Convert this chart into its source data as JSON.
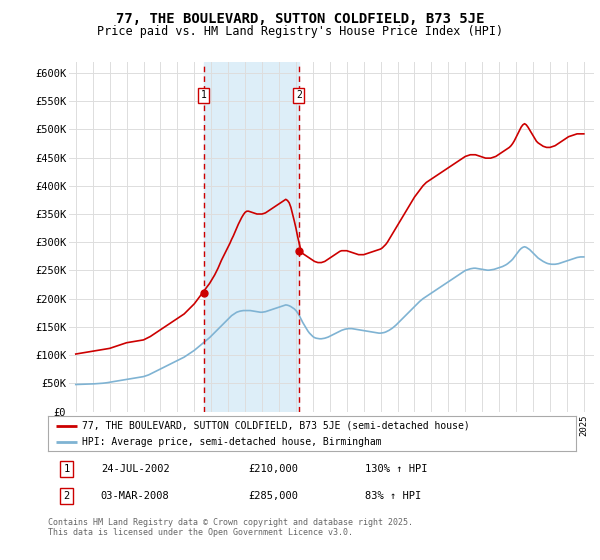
{
  "title": "77, THE BOULEVARD, SUTTON COLDFIELD, B73 5JE",
  "subtitle": "Price paid vs. HM Land Registry's House Price Index (HPI)",
  "ylim": [
    0,
    620000
  ],
  "yticks": [
    0,
    50000,
    100000,
    150000,
    200000,
    250000,
    300000,
    350000,
    400000,
    450000,
    500000,
    550000,
    600000
  ],
  "ytick_labels": [
    "£0",
    "£50K",
    "£100K",
    "£150K",
    "£200K",
    "£250K",
    "£300K",
    "£350K",
    "£400K",
    "£450K",
    "£500K",
    "£550K",
    "£600K"
  ],
  "xlim_start": 1994.6,
  "xlim_end": 2025.6,
  "transaction1_x": 2002.56,
  "transaction1_y": 210000,
  "transaction1_label": "1",
  "transaction1_date": "24-JUL-2002",
  "transaction1_price": "£210,000",
  "transaction1_hpi": "130% ↑ HPI",
  "transaction2_x": 2008.17,
  "transaction2_y": 285000,
  "transaction2_label": "2",
  "transaction2_date": "03-MAR-2008",
  "transaction2_price": "£285,000",
  "transaction2_hpi": "83% ↑ HPI",
  "shade_color": "#ddeef8",
  "red_line_color": "#cc0000",
  "blue_line_color": "#7fb3d3",
  "grid_color": "#dddddd",
  "background_color": "#ffffff",
  "legend_label_red": "77, THE BOULEVARD, SUTTON COLDFIELD, B73 5JE (semi-detached house)",
  "legend_label_blue": "HPI: Average price, semi-detached house, Birmingham",
  "footer": "Contains HM Land Registry data © Crown copyright and database right 2025.\nThis data is licensed under the Open Government Licence v3.0.",
  "hpi_red_years": [
    1995.0,
    1995.1,
    1995.2,
    1995.3,
    1995.4,
    1995.5,
    1995.6,
    1995.7,
    1995.8,
    1995.9,
    1996.0,
    1996.1,
    1996.2,
    1996.3,
    1996.4,
    1996.5,
    1996.6,
    1996.7,
    1996.8,
    1996.9,
    1997.0,
    1997.1,
    1997.2,
    1997.3,
    1997.4,
    1997.5,
    1997.6,
    1997.7,
    1997.8,
    1997.9,
    1998.0,
    1998.1,
    1998.2,
    1998.3,
    1998.4,
    1998.5,
    1998.6,
    1998.7,
    1998.8,
    1998.9,
    1999.0,
    1999.1,
    1999.2,
    1999.3,
    1999.4,
    1999.5,
    1999.6,
    1999.7,
    1999.8,
    1999.9,
    2000.0,
    2000.1,
    2000.2,
    2000.3,
    2000.4,
    2000.5,
    2000.6,
    2000.7,
    2000.8,
    2000.9,
    2001.0,
    2001.1,
    2001.2,
    2001.3,
    2001.4,
    2001.5,
    2001.6,
    2001.7,
    2001.8,
    2001.9,
    2002.0,
    2002.1,
    2002.2,
    2002.3,
    2002.4,
    2002.5,
    2002.6,
    2002.7,
    2002.8,
    2002.9,
    2003.0,
    2003.1,
    2003.2,
    2003.3,
    2003.4,
    2003.5,
    2003.6,
    2003.7,
    2003.8,
    2003.9,
    2004.0,
    2004.1,
    2004.2,
    2004.3,
    2004.4,
    2004.5,
    2004.6,
    2004.7,
    2004.8,
    2004.9,
    2005.0,
    2005.1,
    2005.2,
    2005.3,
    2005.4,
    2005.5,
    2005.6,
    2005.7,
    2005.8,
    2005.9,
    2006.0,
    2006.1,
    2006.2,
    2006.3,
    2006.4,
    2006.5,
    2006.6,
    2006.7,
    2006.8,
    2006.9,
    2007.0,
    2007.1,
    2007.2,
    2007.3,
    2007.4,
    2007.5,
    2007.6,
    2007.7,
    2007.8,
    2007.9,
    2008.0,
    2008.1,
    2008.2,
    2008.3,
    2008.4,
    2008.5,
    2008.6,
    2008.7,
    2008.8,
    2008.9,
    2009.0,
    2009.1,
    2009.2,
    2009.3,
    2009.4,
    2009.5,
    2009.6,
    2009.7,
    2009.8,
    2009.9,
    2010.0,
    2010.1,
    2010.2,
    2010.3,
    2010.4,
    2010.5,
    2010.6,
    2010.7,
    2010.8,
    2010.9,
    2011.0,
    2011.1,
    2011.2,
    2011.3,
    2011.4,
    2011.5,
    2011.6,
    2011.7,
    2011.8,
    2011.9,
    2012.0,
    2012.1,
    2012.2,
    2012.3,
    2012.4,
    2012.5,
    2012.6,
    2012.7,
    2012.8,
    2012.9,
    2013.0,
    2013.1,
    2013.2,
    2013.3,
    2013.4,
    2013.5,
    2013.6,
    2013.7,
    2013.8,
    2013.9,
    2014.0,
    2014.1,
    2014.2,
    2014.3,
    2014.4,
    2014.5,
    2014.6,
    2014.7,
    2014.8,
    2014.9,
    2015.0,
    2015.1,
    2015.2,
    2015.3,
    2015.4,
    2015.5,
    2015.6,
    2015.7,
    2015.8,
    2015.9,
    2016.0,
    2016.1,
    2016.2,
    2016.3,
    2016.4,
    2016.5,
    2016.6,
    2016.7,
    2016.8,
    2016.9,
    2017.0,
    2017.1,
    2017.2,
    2017.3,
    2017.4,
    2017.5,
    2017.6,
    2017.7,
    2017.8,
    2017.9,
    2018.0,
    2018.1,
    2018.2,
    2018.3,
    2018.4,
    2018.5,
    2018.6,
    2018.7,
    2018.8,
    2018.9,
    2019.0,
    2019.1,
    2019.2,
    2019.3,
    2019.4,
    2019.5,
    2019.6,
    2019.7,
    2019.8,
    2019.9,
    2020.0,
    2020.1,
    2020.2,
    2020.3,
    2020.4,
    2020.5,
    2020.6,
    2020.7,
    2020.8,
    2020.9,
    2021.0,
    2021.1,
    2021.2,
    2021.3,
    2021.4,
    2021.5,
    2021.6,
    2021.7,
    2021.8,
    2021.9,
    2022.0,
    2022.1,
    2022.2,
    2022.3,
    2022.4,
    2022.5,
    2022.6,
    2022.7,
    2022.8,
    2022.9,
    2023.0,
    2023.1,
    2023.2,
    2023.3,
    2023.4,
    2023.5,
    2023.6,
    2023.7,
    2023.8,
    2023.9,
    2024.0,
    2024.1,
    2024.2,
    2024.3,
    2024.4,
    2024.5,
    2024.6,
    2024.7,
    2024.8,
    2024.9,
    2025.0
  ],
  "hpi_red_vals": [
    102000,
    102500,
    103000,
    103500,
    104000,
    104500,
    105000,
    105500,
    106000,
    106500,
    107000,
    107500,
    108000,
    108500,
    109000,
    109500,
    110000,
    110500,
    111000,
    111500,
    112000,
    113000,
    114000,
    115000,
    116000,
    117000,
    118000,
    119000,
    120000,
    121000,
    122000,
    122500,
    123000,
    123500,
    124000,
    124500,
    125000,
    125500,
    126000,
    126500,
    127000,
    128500,
    130000,
    131500,
    133000,
    135000,
    137000,
    139000,
    141000,
    143000,
    145000,
    147000,
    149000,
    151000,
    153000,
    155000,
    157000,
    159000,
    161000,
    163000,
    165000,
    167000,
    169000,
    171000,
    173000,
    176000,
    179000,
    182000,
    185000,
    188000,
    191000,
    195000,
    199000,
    203000,
    207000,
    211000,
    215000,
    219000,
    223000,
    227000,
    232000,
    237000,
    242000,
    248000,
    254000,
    261000,
    268000,
    274000,
    280000,
    286000,
    292000,
    298000,
    305000,
    311000,
    318000,
    325000,
    332000,
    338000,
    344000,
    349000,
    353000,
    355000,
    355000,
    354000,
    353000,
    352000,
    351000,
    350000,
    350000,
    350000,
    350000,
    351000,
    352000,
    354000,
    356000,
    358000,
    360000,
    362000,
    364000,
    366000,
    368000,
    370000,
    372000,
    374000,
    376000,
    374000,
    370000,
    362000,
    350000,
    338000,
    325000,
    310000,
    297000,
    285000,
    280000,
    278000,
    276000,
    274000,
    272000,
    270000,
    268000,
    266000,
    265000,
    264000,
    264000,
    264000,
    265000,
    266000,
    268000,
    270000,
    272000,
    274000,
    276000,
    278000,
    280000,
    282000,
    284000,
    285000,
    285000,
    285000,
    285000,
    284000,
    283000,
    282000,
    281000,
    280000,
    279000,
    278000,
    278000,
    278000,
    278000,
    279000,
    280000,
    281000,
    282000,
    283000,
    284000,
    285000,
    286000,
    287000,
    288000,
    290000,
    293000,
    296000,
    300000,
    305000,
    310000,
    315000,
    320000,
    325000,
    330000,
    335000,
    340000,
    345000,
    350000,
    355000,
    360000,
    365000,
    370000,
    375000,
    380000,
    384000,
    388000,
    392000,
    396000,
    400000,
    403000,
    406000,
    408000,
    410000,
    412000,
    414000,
    416000,
    418000,
    420000,
    422000,
    424000,
    426000,
    428000,
    430000,
    432000,
    434000,
    436000,
    438000,
    440000,
    442000,
    444000,
    446000,
    448000,
    450000,
    452000,
    453000,
    454000,
    455000,
    455000,
    455000,
    455000,
    454000,
    453000,
    452000,
    451000,
    450000,
    449000,
    449000,
    449000,
    449000,
    450000,
    451000,
    452000,
    454000,
    456000,
    458000,
    460000,
    462000,
    464000,
    466000,
    468000,
    471000,
    475000,
    480000,
    486000,
    492000,
    498000,
    504000,
    508000,
    510000,
    508000,
    504000,
    499000,
    494000,
    489000,
    484000,
    479000,
    476000,
    474000,
    472000,
    470000,
    469000,
    468000,
    468000,
    468000,
    469000,
    470000,
    471000,
    473000,
    475000,
    477000,
    479000,
    481000,
    483000,
    485000,
    487000,
    488000,
    489000,
    490000,
    491000,
    492000,
    492000,
    492000,
    492000,
    492000
  ],
  "hpi_blue_years": [
    1995.0,
    1995.1,
    1995.2,
    1995.3,
    1995.4,
    1995.5,
    1995.6,
    1995.7,
    1995.8,
    1995.9,
    1996.0,
    1996.1,
    1996.2,
    1996.3,
    1996.4,
    1996.5,
    1996.6,
    1996.7,
    1996.8,
    1996.9,
    1997.0,
    1997.1,
    1997.2,
    1997.3,
    1997.4,
    1997.5,
    1997.6,
    1997.7,
    1997.8,
    1997.9,
    1998.0,
    1998.1,
    1998.2,
    1998.3,
    1998.4,
    1998.5,
    1998.6,
    1998.7,
    1998.8,
    1998.9,
    1999.0,
    1999.1,
    1999.2,
    1999.3,
    1999.4,
    1999.5,
    1999.6,
    1999.7,
    1999.8,
    1999.9,
    2000.0,
    2000.1,
    2000.2,
    2000.3,
    2000.4,
    2000.5,
    2000.6,
    2000.7,
    2000.8,
    2000.9,
    2001.0,
    2001.1,
    2001.2,
    2001.3,
    2001.4,
    2001.5,
    2001.6,
    2001.7,
    2001.8,
    2001.9,
    2002.0,
    2002.1,
    2002.2,
    2002.3,
    2002.4,
    2002.5,
    2002.6,
    2002.7,
    2002.8,
    2002.9,
    2003.0,
    2003.1,
    2003.2,
    2003.3,
    2003.4,
    2003.5,
    2003.6,
    2003.7,
    2003.8,
    2003.9,
    2004.0,
    2004.1,
    2004.2,
    2004.3,
    2004.4,
    2004.5,
    2004.6,
    2004.7,
    2004.8,
    2004.9,
    2005.0,
    2005.1,
    2005.2,
    2005.3,
    2005.4,
    2005.5,
    2005.6,
    2005.7,
    2005.8,
    2005.9,
    2006.0,
    2006.1,
    2006.2,
    2006.3,
    2006.4,
    2006.5,
    2006.6,
    2006.7,
    2006.8,
    2006.9,
    2007.0,
    2007.1,
    2007.2,
    2007.3,
    2007.4,
    2007.5,
    2007.6,
    2007.7,
    2007.8,
    2007.9,
    2008.0,
    2008.1,
    2008.2,
    2008.3,
    2008.4,
    2008.5,
    2008.6,
    2008.7,
    2008.8,
    2008.9,
    2009.0,
    2009.1,
    2009.2,
    2009.3,
    2009.4,
    2009.5,
    2009.6,
    2009.7,
    2009.8,
    2009.9,
    2010.0,
    2010.1,
    2010.2,
    2010.3,
    2010.4,
    2010.5,
    2010.6,
    2010.7,
    2010.8,
    2010.9,
    2011.0,
    2011.1,
    2011.2,
    2011.3,
    2011.4,
    2011.5,
    2011.6,
    2011.7,
    2011.8,
    2011.9,
    2012.0,
    2012.1,
    2012.2,
    2012.3,
    2012.4,
    2012.5,
    2012.6,
    2012.7,
    2012.8,
    2012.9,
    2013.0,
    2013.1,
    2013.2,
    2013.3,
    2013.4,
    2013.5,
    2013.6,
    2013.7,
    2013.8,
    2013.9,
    2014.0,
    2014.1,
    2014.2,
    2014.3,
    2014.4,
    2014.5,
    2014.6,
    2014.7,
    2014.8,
    2014.9,
    2015.0,
    2015.1,
    2015.2,
    2015.3,
    2015.4,
    2015.5,
    2015.6,
    2015.7,
    2015.8,
    2015.9,
    2016.0,
    2016.1,
    2016.2,
    2016.3,
    2016.4,
    2016.5,
    2016.6,
    2016.7,
    2016.8,
    2016.9,
    2017.0,
    2017.1,
    2017.2,
    2017.3,
    2017.4,
    2017.5,
    2017.6,
    2017.7,
    2017.8,
    2017.9,
    2018.0,
    2018.1,
    2018.2,
    2018.3,
    2018.4,
    2018.5,
    2018.6,
    2018.7,
    2018.8,
    2018.9,
    2019.0,
    2019.1,
    2019.2,
    2019.3,
    2019.4,
    2019.5,
    2019.6,
    2019.7,
    2019.8,
    2019.9,
    2020.0,
    2020.1,
    2020.2,
    2020.3,
    2020.4,
    2020.5,
    2020.6,
    2020.7,
    2020.8,
    2020.9,
    2021.0,
    2021.1,
    2021.2,
    2021.3,
    2021.4,
    2021.5,
    2021.6,
    2021.7,
    2021.8,
    2021.9,
    2022.0,
    2022.1,
    2022.2,
    2022.3,
    2022.4,
    2022.5,
    2022.6,
    2022.7,
    2022.8,
    2022.9,
    2023.0,
    2023.1,
    2023.2,
    2023.3,
    2023.4,
    2023.5,
    2023.6,
    2023.7,
    2023.8,
    2023.9,
    2024.0,
    2024.1,
    2024.2,
    2024.3,
    2024.4,
    2024.5,
    2024.6,
    2024.7,
    2024.8,
    2024.9,
    2025.0
  ],
  "hpi_blue_vals": [
    48000,
    48100,
    48200,
    48300,
    48400,
    48500,
    48600,
    48700,
    48800,
    48900,
    49000,
    49200,
    49400,
    49600,
    49800,
    50000,
    50300,
    50600,
    51000,
    51400,
    52000,
    52500,
    53000,
    53500,
    54000,
    54500,
    55000,
    55500,
    56000,
    56500,
    57000,
    57500,
    58000,
    58500,
    59000,
    59500,
    60000,
    60500,
    61000,
    61500,
    62000,
    63000,
    64000,
    65000,
    66500,
    68000,
    69500,
    71000,
    72500,
    74000,
    75500,
    77000,
    78500,
    80000,
    81500,
    83000,
    84500,
    86000,
    87500,
    89000,
    90500,
    92000,
    93500,
    95000,
    96500,
    98500,
    100500,
    102500,
    104500,
    106500,
    108500,
    111000,
    113500,
    116000,
    118500,
    121000,
    123500,
    126000,
    128500,
    131000,
    134000,
    137000,
    140000,
    143000,
    146000,
    149000,
    152000,
    155000,
    158000,
    161000,
    164000,
    167000,
    170000,
    172000,
    174000,
    176000,
    177000,
    178000,
    178500,
    179000,
    179000,
    179000,
    179000,
    179000,
    178500,
    178000,
    177500,
    177000,
    176500,
    176000,
    176000,
    176500,
    177000,
    178000,
    179000,
    180000,
    181000,
    182000,
    183000,
    184000,
    185000,
    186000,
    187000,
    188000,
    189000,
    188500,
    187500,
    186000,
    184000,
    182000,
    179000,
    175000,
    170000,
    164000,
    158000,
    153000,
    148000,
    143000,
    139000,
    136000,
    133000,
    131000,
    130000,
    129500,
    129000,
    129000,
    129500,
    130000,
    131000,
    132000,
    133500,
    135000,
    136500,
    138000,
    139500,
    141000,
    142500,
    144000,
    145000,
    146000,
    146500,
    147000,
    147000,
    147000,
    146500,
    146000,
    145500,
    145000,
    144500,
    144000,
    143500,
    143000,
    142500,
    142000,
    141500,
    141000,
    140500,
    140000,
    139500,
    139000,
    139000,
    139500,
    140000,
    141000,
    142500,
    144000,
    146000,
    148000,
    150500,
    153000,
    156000,
    159000,
    162000,
    165000,
    168000,
    171000,
    174000,
    177000,
    180000,
    183000,
    186000,
    189000,
    192000,
    195000,
    197500,
    200000,
    202000,
    204000,
    206000,
    208000,
    210000,
    212000,
    214000,
    216000,
    218000,
    220000,
    222000,
    224000,
    226000,
    228000,
    230000,
    232000,
    234000,
    236000,
    238000,
    240000,
    242000,
    244000,
    246000,
    248000,
    250000,
    251000,
    252000,
    253000,
    253500,
    254000,
    254000,
    253500,
    253000,
    252500,
    252000,
    251500,
    251000,
    250500,
    250500,
    251000,
    251500,
    252000,
    253000,
    254000,
    255000,
    256000,
    257000,
    258500,
    260000,
    262000,
    264500,
    267000,
    270000,
    274000,
    278000,
    282000,
    286000,
    289000,
    291000,
    292000,
    291000,
    289000,
    287000,
    284000,
    281000,
    278000,
    275000,
    272000,
    270000,
    268000,
    266000,
    264500,
    263000,
    262000,
    261500,
    261000,
    261000,
    261000,
    261500,
    262000,
    263000,
    264000,
    265000,
    266000,
    267000,
    268000,
    269000,
    270000,
    271000,
    272000,
    273000,
    273500,
    274000,
    274000,
    274000
  ]
}
